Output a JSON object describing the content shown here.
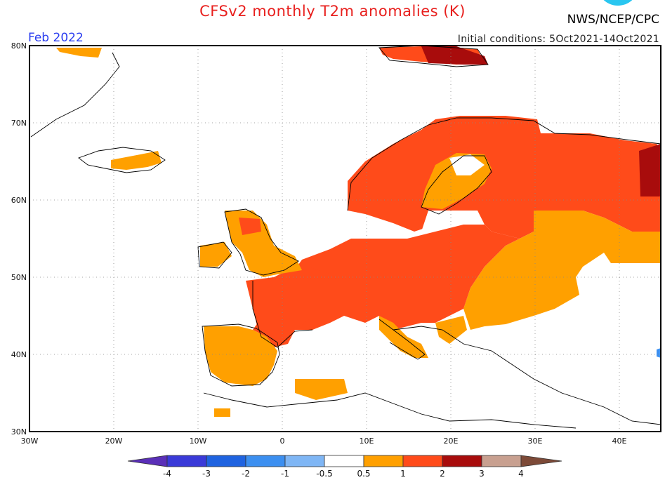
{
  "header": {
    "title": "CFSv2 monthly T2m anomalies (K)",
    "agency": "NWS/NCEP/CPC",
    "month": "Feb 2022",
    "initial_conditions": "Initial conditions: 5Oct2021-14Oct2021"
  },
  "axes": {
    "lat_labels": [
      "80N",
      "70N",
      "60N",
      "50N",
      "40N",
      "30N"
    ],
    "lon_labels": [
      "30W",
      "20W",
      "10W",
      "0",
      "10E",
      "20E",
      "30E",
      "40E"
    ]
  },
  "colorbar": {
    "labels": [
      "-4",
      "-3",
      "-2",
      "-1",
      "-0.5",
      "0.5",
      "1",
      "2",
      "3",
      "4"
    ],
    "colors": {
      "lt_m4": "#5a2fb8",
      "m4_m3": "#3a3ad8",
      "m3_m2": "#1f63e0",
      "m2_m1": "#3c8ff0",
      "m1_m05": "#7fb6f5",
      "neutral": "#ffffff",
      "p05_p1": "#ffa000",
      "p1_p2": "#ff4b1a",
      "p2_p3": "#a80c0c",
      "p3_p4": "#c8a090",
      "gt_p4": "#7d4a38"
    }
  },
  "regions": [
    "Iberia +0.5 to 1",
    "France +1 to 2",
    "Central Europe +1 to 2",
    "Scandinavia +1 to 2",
    "Western Russia +1 to 2",
    "Far NE Russia +2 to 3",
    "Svalbard +2 to 3",
    "British Isles +0.5 to 1",
    "Iceland +0.5 to 1",
    "Eastern Europe +0.5 to 1"
  ]
}
